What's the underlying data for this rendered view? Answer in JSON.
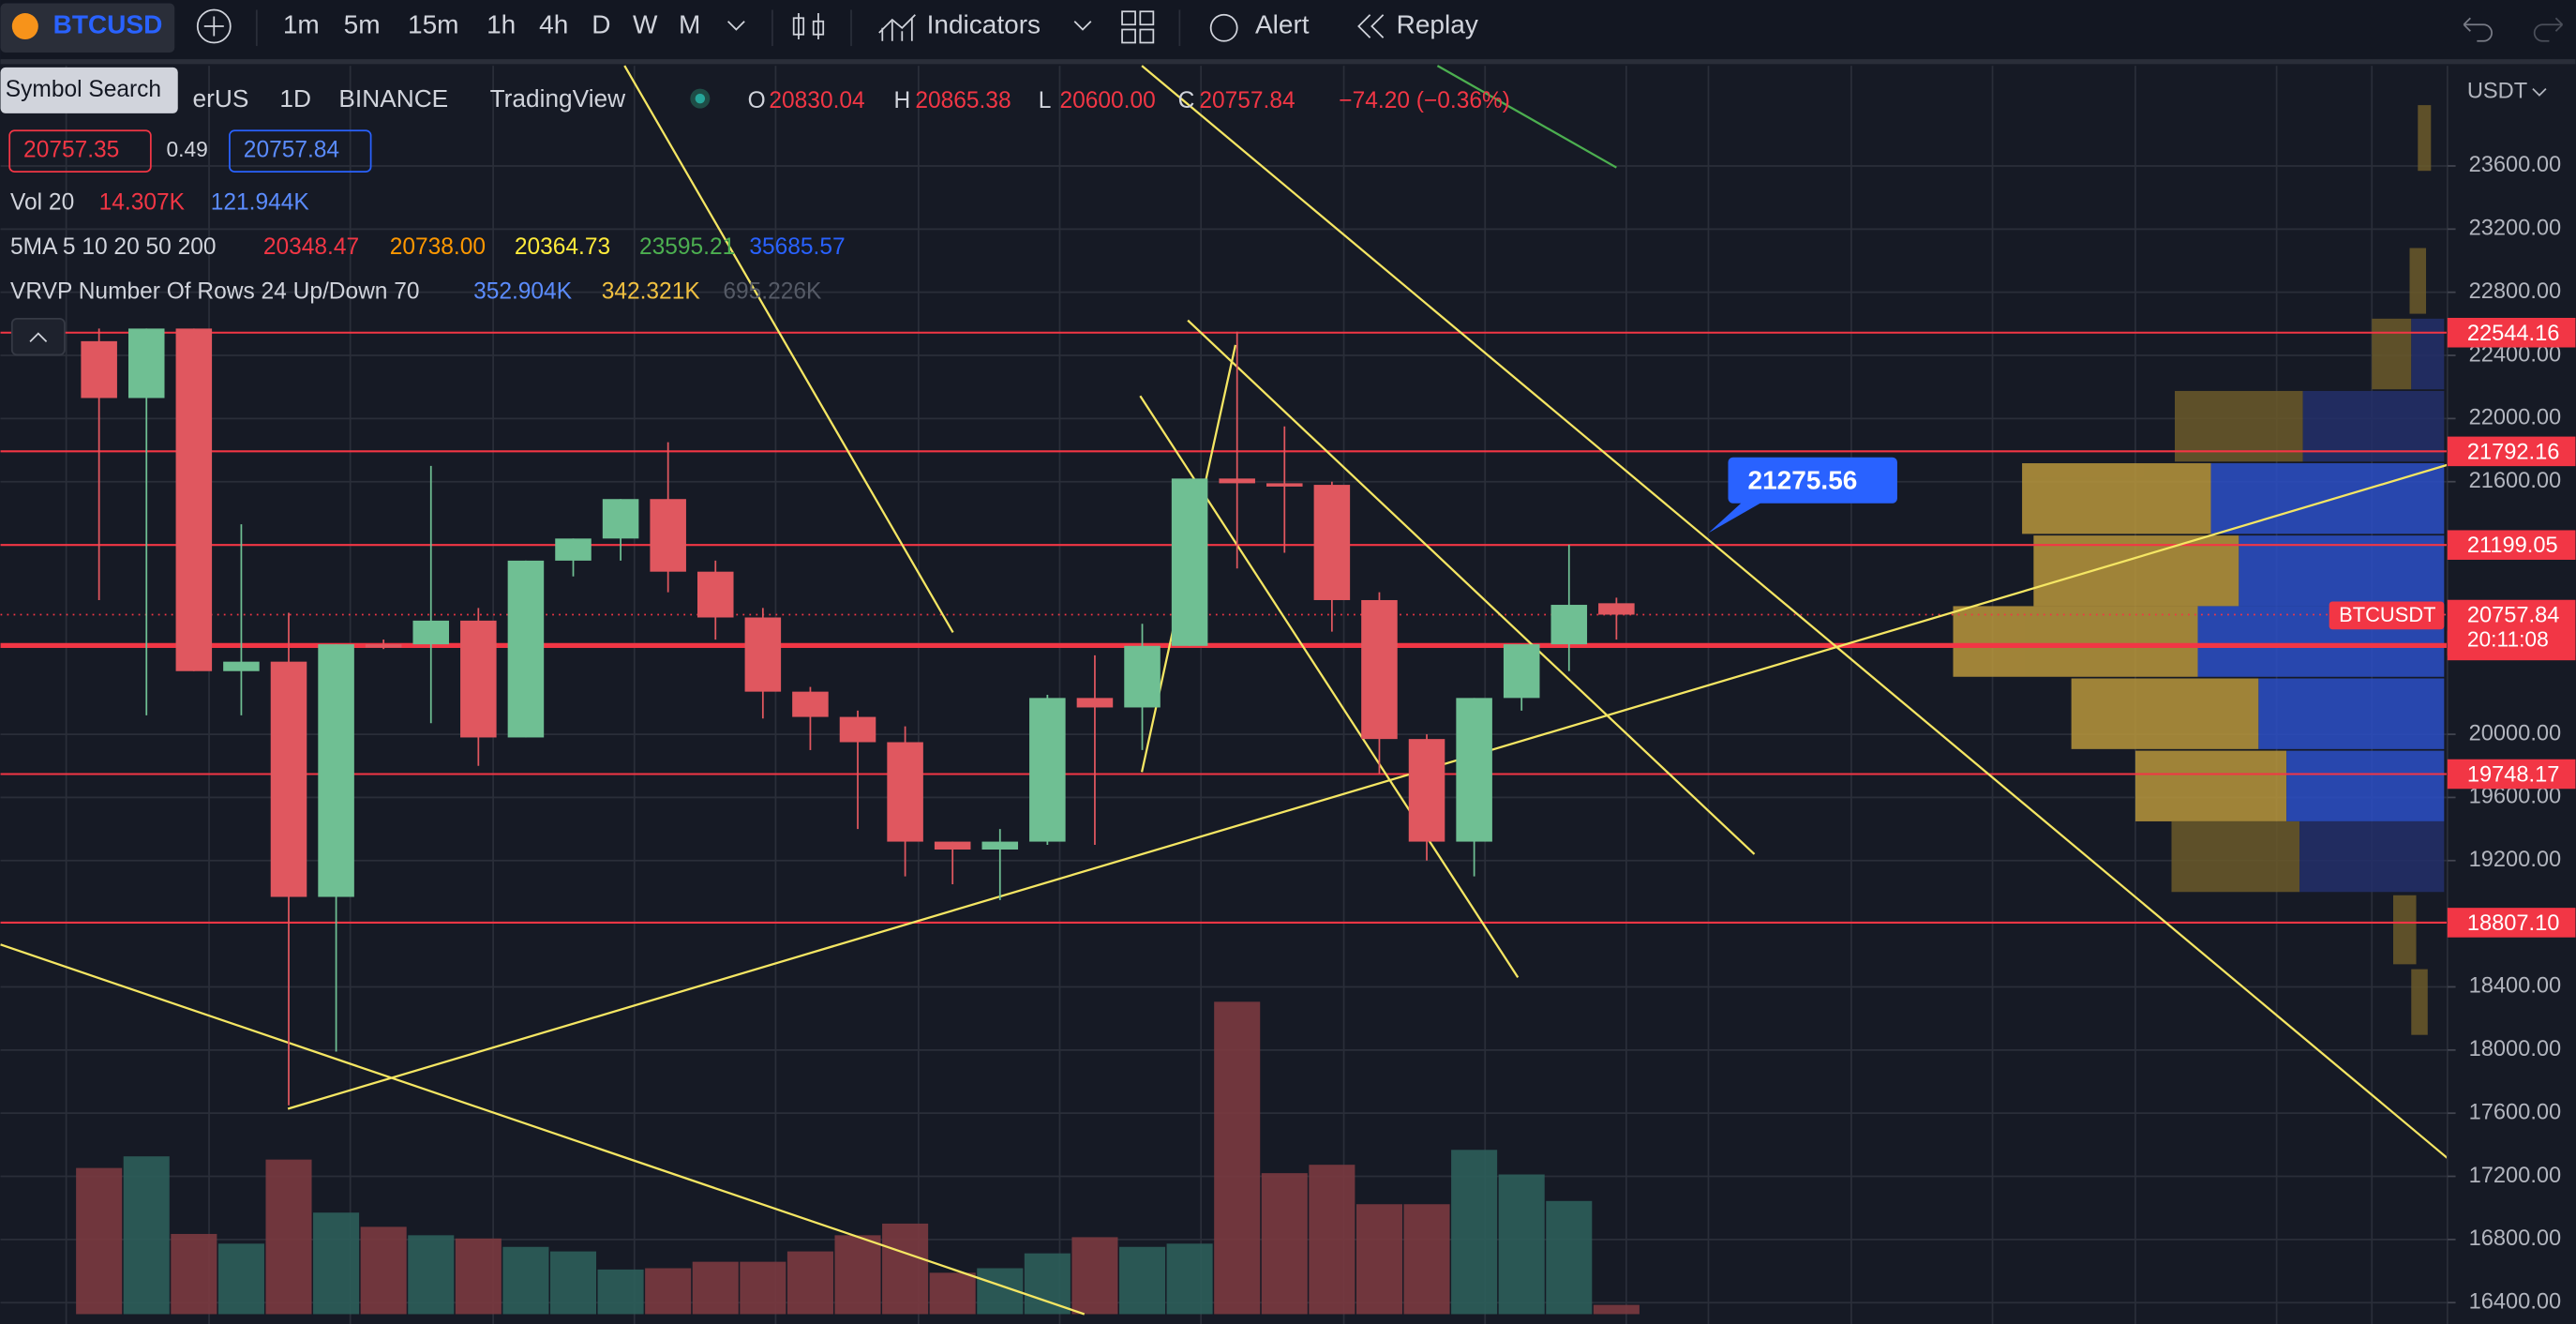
{
  "toolbar": {
    "symbol": "BTCUSD",
    "intervals": [
      "1m",
      "5m",
      "15m",
      "1h",
      "4h",
      "D",
      "W",
      "M"
    ],
    "indicators": "Indicators",
    "alert": "Alert",
    "replay": "Replay"
  },
  "tooltip": "Symbol Search",
  "legend": {
    "name": "erUS",
    "interval": "1D",
    "exchange": "BINANCE",
    "source": "TradingView",
    "open_label": "O",
    "open": "20830.04",
    "high_label": "H",
    "high": "20865.38",
    "low_label": "L",
    "low": "20600.00",
    "close_label": "C",
    "close": "20757.84",
    "change": "−74.20 (−0.36%)",
    "bid": "20757.35",
    "spread": "0.49",
    "ask": "20757.84"
  },
  "studies": [
    {
      "label": "Vol 20",
      "values": [
        "14.307K",
        "121.944K"
      ]
    },
    {
      "label": "5MA 5 10 20 50 200",
      "values": [
        "20348.47",
        "20738.00",
        "20364.73",
        "23595.21",
        "35685.57"
      ]
    },
    {
      "label": "VRVP Number Of Rows 24 Up/Down 70",
      "values": [
        "352.904K",
        "342.321K",
        "695.226K"
      ]
    }
  ],
  "chart": {
    "currency": "USDT",
    "ylim": [
      16327,
      24235
    ],
    "yticks": [
      {
        "value": 23600,
        "label": "23600.00"
      },
      {
        "value": 23200,
        "label": "23200.00"
      },
      {
        "value": 22800,
        "label": "22800.00"
      },
      {
        "value": 22400,
        "label": "22400.00"
      },
      {
        "value": 22000,
        "label": "22000.00"
      },
      {
        "value": 21600,
        "label": "21600.00"
      },
      {
        "value": 20000,
        "label": "20000.00"
      },
      {
        "value": 19600,
        "label": "19600.00"
      },
      {
        "value": 19200,
        "label": "19200.00"
      },
      {
        "value": 18400,
        "label": "18400.00"
      },
      {
        "value": 18000,
        "label": "18000.00"
      },
      {
        "value": 17600,
        "label": "17600.00"
      },
      {
        "value": 17200,
        "label": "17200.00"
      },
      {
        "value": 16800,
        "label": "16800.00"
      },
      {
        "value": 16400,
        "label": "16400.00"
      }
    ],
    "levels": [
      22544.16,
      21792.16,
      21199.05,
      20562.33,
      19748.17,
      {
        "value": 18807.1,
        "label": "18807.10"
      }
    ],
    "last_price": {
      "name": "BTCUSDT",
      "value": 20757.84,
      "countdown": "20:11:08"
    },
    "callout": 21275.56,
    "candles": [
      {
        "open": 22490,
        "high": 22570,
        "low": 20850,
        "close": 22130
      },
      {
        "open": 22130,
        "high": 22570,
        "low": 20120,
        "close": 22570
      },
      {
        "open": 22570,
        "high": 22570,
        "low": 20400,
        "close": 20400
      },
      {
        "open": 20400,
        "high": 21330,
        "low": 20120,
        "close": 20460
      },
      {
        "open": 20460,
        "high": 20770,
        "low": 17650,
        "close": 18970
      },
      {
        "open": 18970,
        "high": 20570,
        "low": 17990,
        "close": 20570
      },
      {
        "open": 20570,
        "high": 20600,
        "low": 20540,
        "close": 20560
      },
      {
        "open": 20570,
        "high": 21700,
        "low": 20070,
        "close": 20720
      },
      {
        "open": 20720,
        "high": 20800,
        "low": 19800,
        "close": 19980
      },
      {
        "open": 19980,
        "high": 21100,
        "low": 19980,
        "close": 21100
      },
      {
        "open": 21100,
        "high": 21240,
        "low": 21000,
        "close": 21240
      },
      {
        "open": 21240,
        "high": 21490,
        "low": 21100,
        "close": 21490
      },
      {
        "open": 21490,
        "high": 21850,
        "low": 20900,
        "close": 21030
      },
      {
        "open": 21030,
        "high": 21100,
        "low": 20600,
        "close": 20740
      },
      {
        "open": 20740,
        "high": 20800,
        "low": 20100,
        "close": 20270
      },
      {
        "open": 20270,
        "high": 20300,
        "low": 19900,
        "close": 20110
      },
      {
        "open": 20110,
        "high": 20150,
        "low": 19400,
        "close": 19950
      },
      {
        "open": 19950,
        "high": 20050,
        "low": 19100,
        "close": 19320
      },
      {
        "open": 19320,
        "high": 19320,
        "low": 19050,
        "close": 19270
      },
      {
        "open": 19270,
        "high": 19400,
        "low": 18950,
        "close": 19320
      },
      {
        "open": 19320,
        "high": 20250,
        "low": 19300,
        "close": 20230
      },
      {
        "open": 20230,
        "high": 20500,
        "low": 19300,
        "close": 20170
      },
      {
        "open": 20170,
        "high": 20700,
        "low": 19900,
        "close": 20560
      },
      {
        "open": 20560,
        "high": 21620,
        "low": 20560,
        "close": 21620
      },
      {
        "open": 21620,
        "high": 22550,
        "low": 21050,
        "close": 21590
      },
      {
        "open": 21590,
        "high": 21950,
        "low": 21150,
        "close": 21580
      },
      {
        "open": 21580,
        "high": 21600,
        "low": 20650,
        "close": 20850
      },
      {
        "open": 20850,
        "high": 20900,
        "low": 19750,
        "close": 19970
      },
      {
        "open": 19970,
        "high": 20000,
        "low": 19200,
        "close": 19320
      },
      {
        "open": 19320,
        "high": 20230,
        "low": 19100,
        "close": 20230
      },
      {
        "open": 20230,
        "high": 20560,
        "low": 20150,
        "close": 20570
      },
      {
        "open": 20570,
        "high": 21200,
        "low": 20400,
        "close": 20820
      },
      {
        "open": 20830.04,
        "high": 20865.38,
        "low": 20600,
        "close": 20757.84
      }
    ],
    "volumes": [
      226,
      244,
      124,
      109,
      239,
      157,
      135,
      122,
      117,
      104,
      97,
      69,
      71,
      81,
      81,
      97,
      122,
      140,
      64,
      71,
      94,
      119,
      104,
      109,
      483,
      218,
      231,
      170,
      170,
      254,
      216,
      175,
      14.307
    ]
  }
}
